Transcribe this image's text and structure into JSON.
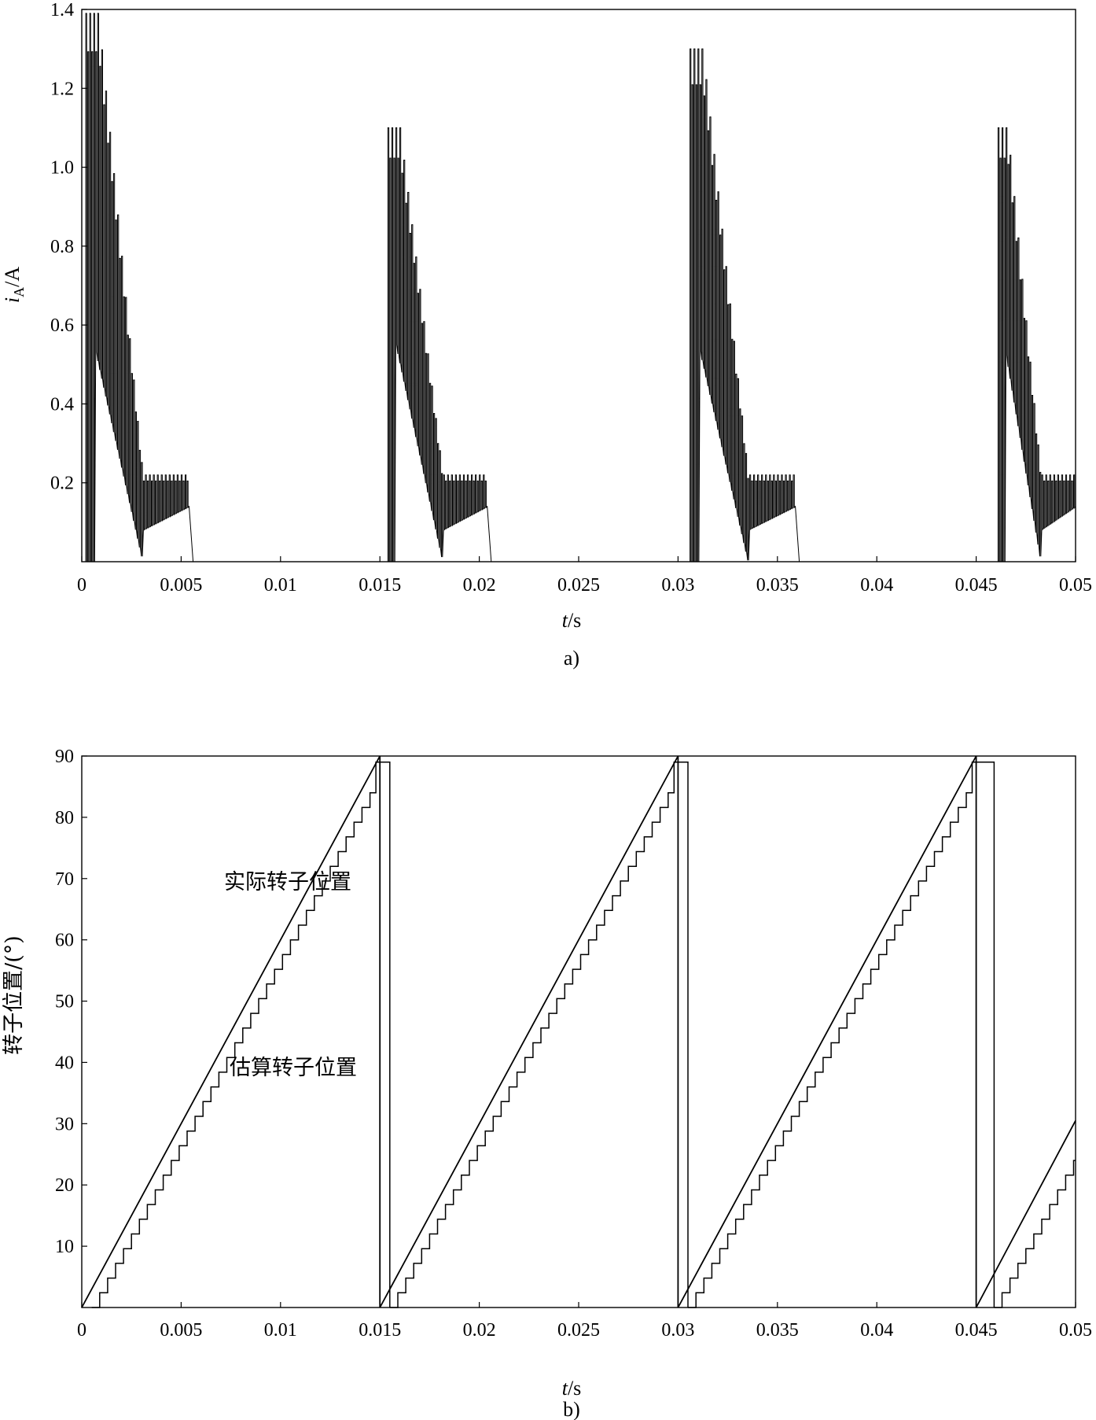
{
  "chart_data": [
    {
      "type": "line",
      "panel_label": "a)",
      "xlabel_var": "t",
      "xlabel_unit": "/s",
      "ylabel_var": "i",
      "ylabel_sub": "A",
      "ylabel_unit": "/A",
      "xlim": [
        0,
        0.05
      ],
      "ylim": [
        0,
        1.4
      ],
      "x_ticks": [
        "0",
        "0.005",
        "0.01",
        "0.015",
        "0.02",
        "0.025",
        "0.03",
        "0.035",
        "0.04",
        "0.045",
        "0.05"
      ],
      "y_ticks": [
        "0.2",
        "0.4",
        "0.6",
        "0.8",
        "1.0",
        "1.2",
        "1.4"
      ],
      "grid": false,
      "series": [
        {
          "description_of_pulses": "chopped phase current bursts",
          "bursts": [
            {
              "t_start": 0.0002,
              "t_end": 0.0054,
              "peak": 1.39,
              "plateau": 0.22
            },
            {
              "t_start": 0.0154,
              "t_end": 0.0204,
              "peak": 1.1,
              "plateau": 0.22
            },
            {
              "t_start": 0.0306,
              "t_end": 0.0359,
              "peak": 1.3,
              "plateau": 0.22
            },
            {
              "t_start": 0.0461,
              "t_end": 0.05,
              "peak": 1.1,
              "plateau": 0.22
            }
          ]
        }
      ]
    },
    {
      "type": "line",
      "panel_label": "b)",
      "xlabel_var": "t",
      "xlabel_unit": "/s",
      "ylabel": "转子位置/(°)",
      "xlim": [
        0,
        0.05
      ],
      "ylim": [
        0,
        90
      ],
      "x_ticks": [
        "0",
        "0.005",
        "0.01",
        "0.015",
        "0.02",
        "0.025",
        "0.03",
        "0.035",
        "0.04",
        "0.045",
        "0.05"
      ],
      "y_ticks": [
        "10",
        "20",
        "30",
        "40",
        "50",
        "60",
        "70",
        "80",
        "90"
      ],
      "grid": false,
      "annotations": [
        "实际转子位置",
        "估算转子位置"
      ],
      "series": [
        {
          "name": "实际转子位置",
          "period": 0.015,
          "max": 90,
          "points": [
            [
              0,
              0
            ],
            [
              0.015,
              90
            ],
            [
              0.015,
              0
            ],
            [
              0.03,
              90
            ],
            [
              0.03,
              0
            ],
            [
              0.045,
              90
            ],
            [
              0.045,
              0
            ],
            [
              0.05,
              30.5
            ]
          ]
        },
        {
          "name": "估算转子位置",
          "style": "staircase",
          "lag": 0.0005,
          "step_deg": 2.4,
          "segments": [
            {
              "t0": 0.0005,
              "t1": 0.0148,
              "hold_end": 0.0155,
              "hold_val": 89
            },
            {
              "t0": 0.0155,
              "t1": 0.0298,
              "hold_end": 0.0305,
              "hold_val": 89
            },
            {
              "t0": 0.0305,
              "t1": 0.0448,
              "hold_end": 0.0459,
              "hold_val": 89
            },
            {
              "t0": 0.0459,
              "t1": 0.05
            }
          ]
        }
      ]
    }
  ]
}
